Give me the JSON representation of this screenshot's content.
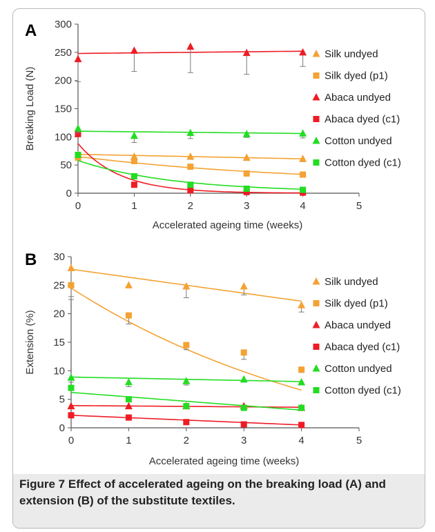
{
  "colors": {
    "silk_undyed": "#f4a233",
    "silk_dyed": "#f4a233",
    "abaca_undyed": "#ee1c24",
    "abaca_dyed": "#ee1c24",
    "cotton_undyed": "#22dd22",
    "cotton_dyed": "#22dd22",
    "axis": "#555555",
    "error_bar": "#7a7a7a"
  },
  "caption": {
    "label": "Figure 7",
    "text": "Effect of accelerated ageing on the breaking load (A) and extension (B) of the substitute textiles."
  },
  "chart_data": [
    {
      "type": "scatter",
      "panel_label": "A",
      "xlabel": "Accelerated ageing time (weeks)",
      "ylabel": "Breaking Load (N)",
      "xlim": [
        0,
        5
      ],
      "ylim": [
        0,
        300
      ],
      "xticks": [
        "0",
        "1",
        "2",
        "3",
        "4",
        "5"
      ],
      "yticks": [
        "0",
        "50",
        "100",
        "150",
        "200",
        "250",
        "300"
      ],
      "grid": false,
      "legend_position": "right",
      "series": [
        {
          "name": "Silk undyed",
          "marker": "triangle",
          "color_key": "silk_undyed",
          "x": [
            0,
            1,
            2,
            3,
            4
          ],
          "y": [
            68,
            65,
            65,
            63,
            61
          ],
          "err": [
            5,
            5,
            5,
            5,
            5
          ],
          "trend": {
            "kind": "linear",
            "y0": 69,
            "y4": 61
          }
        },
        {
          "name": "Silk dyed (p1)",
          "marker": "square",
          "color_key": "silk_dyed",
          "x": [
            0,
            1,
            2,
            3,
            4
          ],
          "y": [
            63,
            57,
            47,
            35,
            33
          ],
          "err": [
            4,
            4,
            4,
            4,
            4
          ],
          "trend": {
            "kind": "exp",
            "y0": 65,
            "yinf": 15,
            "k": 0.25
          }
        },
        {
          "name": "Abaca undyed",
          "marker": "triangle",
          "color_key": "abaca_undyed",
          "x": [
            0,
            1,
            2,
            3,
            4
          ],
          "y": [
            238,
            253,
            260,
            249,
            250
          ],
          "err": [
            40,
            37,
            46,
            38,
            25
          ],
          "trend": {
            "kind": "linear",
            "y0": 248,
            "y4": 252
          }
        },
        {
          "name": "Abaca dyed (c1)",
          "marker": "square",
          "color_key": "abaca_dyed",
          "x": [
            0,
            1,
            2,
            3,
            4
          ],
          "y": [
            105,
            15,
            5,
            2,
            1
          ],
          "err": [
            0,
            0,
            0,
            0,
            0
          ],
          "trend": {
            "kind": "exp",
            "y0": 88,
            "yinf": 0,
            "k": 1.35
          }
        },
        {
          "name": "Cotton undyed",
          "marker": "triangle",
          "color_key": "cotton_undyed",
          "x": [
            0,
            1,
            2,
            3,
            4
          ],
          "y": [
            115,
            102,
            107,
            105,
            106
          ],
          "err": [
            8,
            12,
            10,
            6,
            8
          ],
          "trend": {
            "kind": "linear",
            "y0": 110,
            "y4": 106
          }
        },
        {
          "name": "Cotton dyed (c1)",
          "marker": "square",
          "color_key": "cotton_dyed",
          "x": [
            0,
            1,
            2,
            3,
            4
          ],
          "y": [
            68,
            30,
            15,
            8,
            6
          ],
          "err": [
            0,
            0,
            0,
            0,
            0
          ],
          "trend": {
            "kind": "exp",
            "y0": 58,
            "yinf": 2,
            "k": 0.6
          }
        }
      ]
    },
    {
      "type": "scatter",
      "panel_label": "B",
      "xlabel": "Accelerated ageing time (weeks)",
      "ylabel": "Extension (%)",
      "xlim": [
        0,
        5
      ],
      "ylim": [
        0,
        30
      ],
      "xticks": [
        "0",
        "1",
        "2",
        "3",
        "4",
        "5"
      ],
      "yticks": [
        "0",
        "5",
        "10",
        "15",
        "20",
        "25",
        "30"
      ],
      "grid": false,
      "legend_position": "right",
      "series": [
        {
          "name": "Silk undyed",
          "marker": "triangle",
          "color_key": "silk_undyed",
          "x": [
            0,
            1,
            2,
            3,
            4
          ],
          "y": [
            28,
            25,
            24.8,
            24.8,
            21.5
          ],
          "err": [
            5,
            0,
            2,
            1.5,
            1.2
          ],
          "trend": {
            "kind": "linear",
            "y0": 27.8,
            "y4": 22.2
          }
        },
        {
          "name": "Silk dyed (p1)",
          "marker": "square",
          "color_key": "silk_dyed",
          "x": [
            0,
            1,
            2,
            3,
            4
          ],
          "y": [
            25,
            19.7,
            14.5,
            13.2,
            10.2
          ],
          "err": [
            2.5,
            1.5,
            0.8,
            1.2,
            0.5
          ],
          "trend": {
            "kind": "exp",
            "y0": 24.5,
            "yinf": -8,
            "k": 0.2
          }
        },
        {
          "name": "Abaca undyed",
          "marker": "triangle",
          "color_key": "abaca_undyed",
          "x": [
            0,
            1,
            2,
            3,
            4
          ],
          "y": [
            3.8,
            3.8,
            3.8,
            3.8,
            3.5
          ],
          "err": [
            0.4,
            0.4,
            0.4,
            0.4,
            0.4
          ],
          "trend": {
            "kind": "linear",
            "y0": 3.9,
            "y4": 3.6
          }
        },
        {
          "name": "Abaca dyed (c1)",
          "marker": "square",
          "color_key": "abaca_dyed",
          "x": [
            0,
            1,
            2,
            3,
            4
          ],
          "y": [
            2.2,
            1.8,
            1.0,
            0.6,
            0.5
          ],
          "err": [
            0,
            0,
            0,
            0,
            0
          ],
          "trend": {
            "kind": "linear",
            "y0": 2.2,
            "y4": 0.5
          }
        },
        {
          "name": "Cotton undyed",
          "marker": "triangle",
          "color_key": "cotton_undyed",
          "x": [
            0,
            1,
            2,
            3,
            4
          ],
          "y": [
            8.8,
            8.0,
            8.2,
            8.5,
            8.0
          ],
          "err": [
            0.8,
            0.8,
            0.7,
            0.5,
            0.5
          ],
          "trend": {
            "kind": "linear",
            "y0": 8.9,
            "y4": 8.1
          }
        },
        {
          "name": "Cotton dyed (c1)",
          "marker": "square",
          "color_key": "cotton_dyed",
          "x": [
            0,
            1,
            2,
            3,
            4
          ],
          "y": [
            7.0,
            5.0,
            3.8,
            3.5,
            3.5
          ],
          "err": [
            0,
            0,
            0,
            0,
            0
          ],
          "trend": {
            "kind": "linear",
            "y0": 6.2,
            "y4": 3.1
          }
        }
      ]
    }
  ]
}
